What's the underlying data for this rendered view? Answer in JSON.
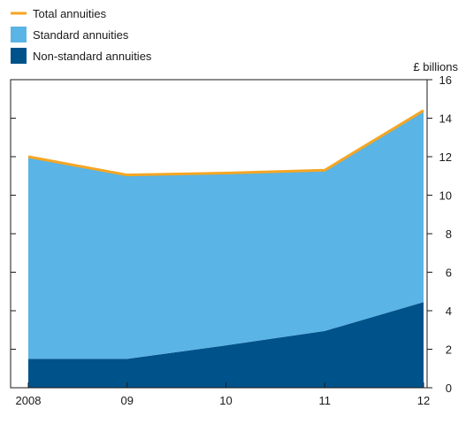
{
  "chart_data": {
    "type": "area",
    "stacked": true,
    "x": [
      "2008",
      "09",
      "10",
      "11",
      "12"
    ],
    "series": [
      {
        "name": "Non-standard annuities",
        "type": "area",
        "color": "#00528a",
        "values": [
          1.5,
          1.5,
          2.2,
          2.95,
          4.45
        ]
      },
      {
        "name": "Standard annuities",
        "type": "area",
        "color": "#5ab4e5",
        "values": [
          10.5,
          9.55,
          8.95,
          8.35,
          9.95
        ]
      },
      {
        "name": "Total annuities",
        "type": "line",
        "color": "#f5a623",
        "values": [
          12.0,
          11.05,
          11.15,
          11.3,
          14.4
        ]
      }
    ],
    "legend_order": [
      "Total annuities",
      "Standard annuities",
      "Non-standard annuities"
    ],
    "legend_position": "top-left",
    "ylabel": "£ billions",
    "ylim": [
      0,
      16
    ],
    "yticks": [
      "0",
      "2",
      "4",
      "6",
      "8",
      "10",
      "12",
      "14",
      "16"
    ],
    "y_axis_side": "right",
    "grid": false
  }
}
